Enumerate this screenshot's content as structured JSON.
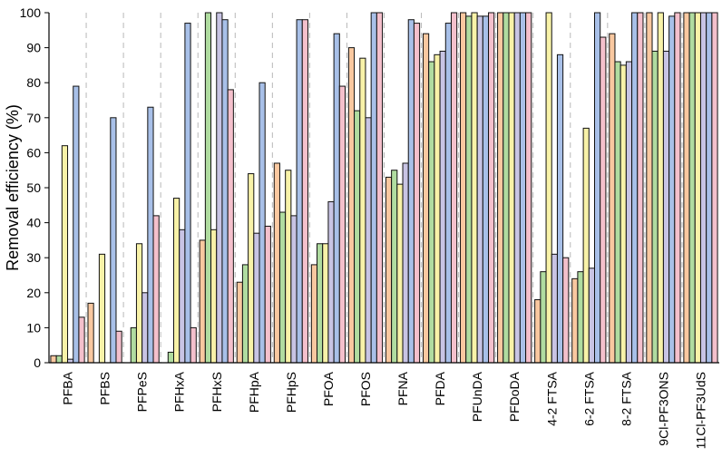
{
  "chart_data": {
    "type": "bar",
    "ylabel": "Removal efficiency (%)",
    "xlabel": "",
    "ylim": [
      0,
      100
    ],
    "yticks": [
      0,
      10,
      20,
      30,
      40,
      50,
      60,
      70,
      80,
      90,
      100
    ],
    "grid": "dashed vertical separators between categories",
    "legend": "none",
    "categories": [
      "PFBA",
      "PFBS",
      "PFPeS",
      "PFHxA",
      "PFHxS",
      "PFHpA",
      "PFHpS",
      "PFOA",
      "PFOS",
      "PFNA",
      "PFDA",
      "PFUnDA",
      "PFDoDA",
      "4-2 FTSA",
      "6-2 FTSA",
      "8-2 FTSA",
      "9Cl-PF3ONS",
      "11Cl-PF3UdS"
    ],
    "series": [
      {
        "color": "#f9c8a0",
        "values": [
          2,
          17,
          0,
          0,
          35,
          23,
          57,
          28,
          90,
          53,
          94,
          100,
          100,
          18,
          24,
          94,
          100,
          100
        ]
      },
      {
        "color": "#b0dca0",
        "values": [
          2,
          0,
          10,
          3,
          100,
          28,
          43,
          34,
          72,
          55,
          86,
          99,
          100,
          26,
          26,
          86,
          89,
          100
        ]
      },
      {
        "color": "#f8f2a8",
        "values": [
          62,
          31,
          34,
          47,
          38,
          54,
          55,
          34,
          87,
          51,
          88,
          100,
          100,
          100,
          67,
          85,
          100,
          100
        ]
      },
      {
        "color": "#c8c4e4",
        "values": [
          1,
          0,
          20,
          38,
          100,
          37,
          42,
          46,
          70,
          57,
          89,
          99,
          100,
          31,
          27,
          86,
          89,
          100
        ]
      },
      {
        "color": "#a8c0e8",
        "values": [
          79,
          70,
          73,
          97,
          98,
          80,
          98,
          94,
          100,
          98,
          97,
          99,
          100,
          88,
          100,
          100,
          99,
          100
        ]
      },
      {
        "color": "#f4c0cc",
        "values": [
          13,
          9,
          42,
          10,
          78,
          39,
          98,
          79,
          100,
          97,
          100,
          100,
          100,
          30,
          93,
          100,
          100,
          100
        ]
      }
    ]
  }
}
